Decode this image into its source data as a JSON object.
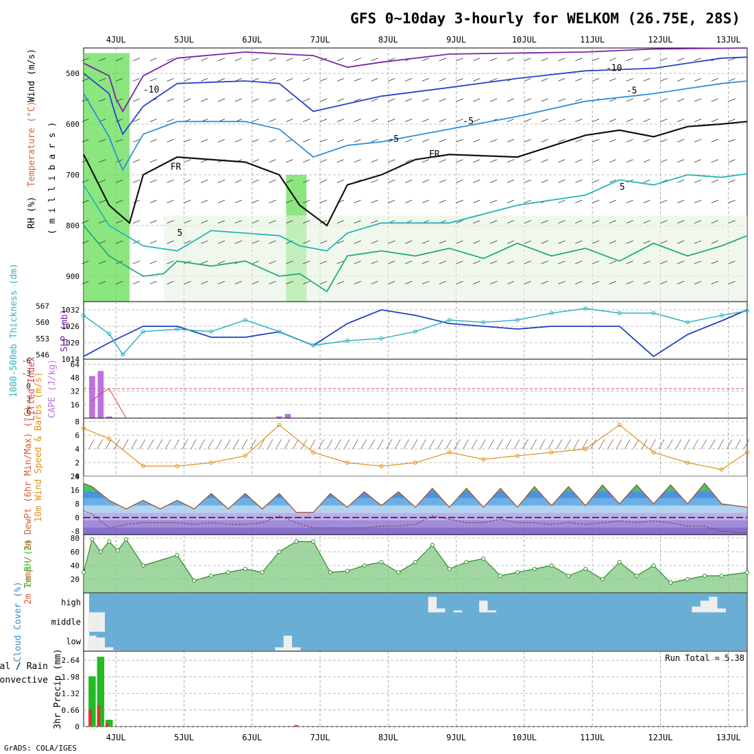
{
  "title": "GFS 0~10day 3-hourly for WELKOM (26.75E, 28S)",
  "footer": "GrADS: COLA/IGES",
  "colors": {
    "rh": "#33cc33",
    "temperature": "#d95f3b",
    "wind": "#000000",
    "slp": "#1f3fbf",
    "thickness": "#2eb3bf",
    "cape": "#c070e0",
    "lifted": "#d94040",
    "wind10": "#e0901a",
    "dewpt": "#808080",
    "cloud_bg": "#6aaed6",
    "rain": "#22bb22",
    "convective": "#dd3333"
  },
  "chart_data": [
    {
      "panel": "upper_air",
      "type": "contour",
      "x_labels": [
        "4JUL",
        "5JUL",
        "6JUL",
        "7JUL",
        "8JUL",
        "9JUL",
        "10JUL",
        "11JUL",
        "12JUL",
        "13JUL"
      ],
      "x_label_offsets": [
        0.1,
        1.1,
        2.1,
        3.1,
        4.1,
        5.1,
        6.1,
        7.1,
        8.1,
        9.1
      ],
      "x_range": [
        -0.375,
        9.375
      ],
      "ylabel_parts": [
        "RH (%)",
        "Temperature (°C)",
        "Wind (m/s)"
      ],
      "ylabel_units": "( m i l l i b a r s )",
      "y_ticks": [
        500,
        600,
        700,
        800,
        900
      ],
      "ylim": [
        450,
        950
      ],
      "contour_labels": [
        "-10",
        "-10",
        "-5",
        "-5",
        "-5",
        "5",
        "5",
        "FR",
        "FR"
      ],
      "isotherms": {
        "neg15": [
          [
            -0.375,
            480
          ],
          [
            0,
            505
          ],
          [
            0.1,
            550
          ],
          [
            0.2,
            575
          ],
          [
            0.5,
            505
          ],
          [
            1,
            470
          ],
          [
            2,
            458
          ],
          [
            3,
            465
          ],
          [
            3.5,
            488
          ],
          [
            4,
            478
          ],
          [
            5,
            462
          ],
          [
            6,
            460
          ],
          [
            7,
            458
          ],
          [
            8,
            452
          ],
          [
            9.375,
            450
          ]
        ],
        "neg10": [
          [
            -0.375,
            500
          ],
          [
            0,
            540
          ],
          [
            0.1,
            585
          ],
          [
            0.2,
            620
          ],
          [
            0.5,
            565
          ],
          [
            1,
            520
          ],
          [
            2,
            515
          ],
          [
            2.5,
            520
          ],
          [
            3,
            575
          ],
          [
            3.5,
            560
          ],
          [
            4,
            545
          ],
          [
            5,
            528
          ],
          [
            6,
            510
          ],
          [
            7,
            495
          ],
          [
            8,
            490
          ],
          [
            9,
            470
          ],
          [
            9.375,
            468
          ]
        ],
        "neg5": [
          [
            -0.375,
            540
          ],
          [
            0,
            625
          ],
          [
            0.1,
            660
          ],
          [
            0.2,
            690
          ],
          [
            0.5,
            620
          ],
          [
            1,
            595
          ],
          [
            2,
            595
          ],
          [
            2.5,
            610
          ],
          [
            3,
            665
          ],
          [
            3.5,
            642
          ],
          [
            4,
            635
          ],
          [
            5,
            610
          ],
          [
            6,
            585
          ],
          [
            7,
            555
          ],
          [
            8,
            540
          ],
          [
            9,
            520
          ],
          [
            9.375,
            515
          ]
        ],
        "zero": [
          [
            -0.375,
            660
          ],
          [
            0,
            760
          ],
          [
            0.3,
            795
          ],
          [
            0.5,
            700
          ],
          [
            1,
            665
          ],
          [
            2,
            675
          ],
          [
            2.5,
            700
          ],
          [
            2.8,
            760
          ],
          [
            3.2,
            800
          ],
          [
            3.5,
            720
          ],
          [
            4,
            700
          ],
          [
            4.5,
            670
          ],
          [
            5,
            660
          ],
          [
            6,
            665
          ],
          [
            7,
            622
          ],
          [
            7.5,
            612
          ],
          [
            8,
            625
          ],
          [
            8.5,
            605
          ],
          [
            9,
            600
          ],
          [
            9.375,
            595
          ]
        ],
        "pos5": [
          [
            -0.375,
            720
          ],
          [
            0,
            800
          ],
          [
            0.5,
            840
          ],
          [
            1,
            850
          ],
          [
            1.5,
            810
          ],
          [
            2,
            815
          ],
          [
            2.5,
            820
          ],
          [
            2.8,
            840
          ],
          [
            3.2,
            850
          ],
          [
            3.5,
            815
          ],
          [
            4,
            795
          ],
          [
            5,
            795
          ],
          [
            6,
            760
          ],
          [
            7,
            740
          ],
          [
            7.5,
            710
          ],
          [
            8,
            720
          ],
          [
            8.5,
            700
          ],
          [
            9,
            705
          ],
          [
            9.375,
            698
          ]
        ],
        "pos10": [
          [
            -0.375,
            800
          ],
          [
            0,
            860
          ],
          [
            0.5,
            900
          ],
          [
            0.8,
            895
          ],
          [
            1,
            870
          ],
          [
            1.5,
            880
          ],
          [
            2,
            870
          ],
          [
            2.5,
            900
          ],
          [
            2.8,
            895
          ],
          [
            3.2,
            930
          ],
          [
            3.5,
            860
          ],
          [
            4,
            850
          ],
          [
            4.5,
            860
          ],
          [
            5,
            845
          ],
          [
            5.5,
            865
          ],
          [
            6,
            835
          ],
          [
            6.5,
            860
          ],
          [
            7,
            845
          ],
          [
            7.5,
            870
          ],
          [
            8,
            835
          ],
          [
            8.5,
            860
          ],
          [
            9,
            840
          ],
          [
            9.375,
            820
          ]
        ]
      },
      "rh_moist_days": [
        [
          -0.375,
          0.3,
          460,
          950
        ],
        [
          2.6,
          2.9,
          700,
          950
        ]
      ]
    },
    {
      "panel": "slp_thickness",
      "type": "line",
      "title": "SLP / 1000-500mb Thickness",
      "ylabel_left": "1000-500mb Thickness (dm)",
      "ylabel_right": "SLP (mb)",
      "thickness_ticks": [
        546,
        553,
        560,
        567
      ],
      "slp_ticks": [
        1014,
        1020,
        1026,
        1032
      ],
      "slp_ylim": [
        1014,
        1035
      ],
      "thick_ylim": [
        544,
        569
      ],
      "series": [
        {
          "name": "SLP (mb)",
          "x": [
            -0.375,
            0,
            0.5,
            1,
            1.5,
            2,
            2.5,
            3,
            3.5,
            4,
            4.5,
            5,
            5.5,
            6,
            6.5,
            7,
            7.5,
            8,
            8.5,
            9,
            9.375
          ],
          "values": [
            1015,
            1020,
            1026,
            1026,
            1022,
            1022,
            1024,
            1019,
            1027,
            1032,
            1030,
            1027,
            1026,
            1025,
            1026,
            1026,
            1026,
            1015,
            1023,
            1028,
            1032
          ]
        },
        {
          "name": "1000-500mb Thickness (dm)",
          "x": [
            -0.375,
            0,
            0.2,
            0.5,
            1,
            1.5,
            2,
            2.5,
            3,
            3.5,
            4,
            4.5,
            5,
            5.5,
            6,
            6.5,
            7,
            7.5,
            8,
            8.5,
            9,
            9.375
          ],
          "values": [
            563,
            555,
            546,
            556,
            557,
            556,
            561,
            556,
            550,
            552,
            553,
            556,
            561,
            560,
            561,
            564,
            566,
            564,
            564,
            560,
            563,
            565
          ]
        }
      ]
    },
    {
      "panel": "cape_lifted",
      "type": "bar",
      "ylabel_left": "Lifted Index",
      "ylabel_right": "CAPE (J/kg)",
      "li_ticks": [
        "-6",
        "-3",
        "0",
        "3",
        "6"
      ],
      "cape_ticks": [
        16,
        32,
        48,
        64
      ],
      "cape_ylim": [
        0,
        70
      ],
      "cape_x": [
        -0.25,
        -0.125,
        0,
        2.5,
        2.625
      ],
      "cape_values": [
        50,
        56,
        2,
        2,
        5
      ],
      "lifted_x": [
        -0.25,
        -0.125,
        0,
        0.125,
        0.25
      ],
      "lifted_values": [
        2.5,
        1,
        0,
        3,
        6
      ]
    },
    {
      "panel": "wind10",
      "type": "line",
      "ylabel": "10m Wind Speed & Barbs (m/s)",
      "y_ticks": [
        0,
        2,
        4,
        6,
        8
      ],
      "ylim": [
        0,
        8.5
      ],
      "x": [
        -0.375,
        0,
        0.5,
        1,
        1.5,
        2,
        2.5,
        3,
        3.5,
        4,
        4.5,
        5,
        5.5,
        6,
        6.5,
        7,
        7.5,
        8,
        8.5,
        9,
        9.375
      ],
      "values": [
        7,
        5.5,
        1.5,
        1.5,
        2,
        3,
        7.5,
        3.5,
        2,
        1.5,
        2,
        3.5,
        2.5,
        3,
        3.5,
        4,
        7.5,
        3.5,
        2,
        1,
        3.5
      ]
    },
    {
      "panel": "temp2m",
      "type": "area",
      "ylabel": "2m Temp / 2m DewPt (6hr Min/Max) (°C)",
      "y_ticks": [
        -8,
        0,
        8,
        16,
        24
      ],
      "ylim": [
        -10,
        24
      ],
      "x": [
        -0.375,
        -0.25,
        0,
        0.25,
        0.5,
        0.75,
        1,
        1.25,
        1.5,
        1.75,
        2,
        2.25,
        2.5,
        2.75,
        3,
        3.25,
        3.5,
        3.75,
        4,
        4.25,
        4.5,
        4.75,
        5,
        5.25,
        5.5,
        5.75,
        6,
        6.25,
        6.5,
        6.75,
        7,
        7.25,
        7.5,
        7.75,
        8,
        8.25,
        8.5,
        8.75,
        9,
        9.375
      ],
      "temp": [
        20,
        18,
        10,
        5,
        10,
        5,
        10,
        5,
        14,
        5,
        14,
        5,
        14,
        3,
        3,
        14,
        6,
        15,
        7,
        15,
        6,
        17,
        6,
        17,
        6,
        17,
        6,
        18,
        7,
        18,
        7,
        19,
        8,
        19,
        8,
        19,
        8,
        20,
        8,
        6
      ],
      "dewpt": [
        4,
        2,
        -6,
        -4,
        -3,
        -3,
        -3,
        -4,
        -3,
        -4,
        -4,
        -3,
        1,
        -3,
        -6,
        -6,
        -6,
        -6,
        -5,
        -5,
        -4,
        1,
        -1,
        -3,
        -3,
        -1,
        -3,
        -3,
        -4,
        -3,
        -4,
        -3,
        -2,
        -3,
        -2,
        -3,
        -5,
        -5,
        -8,
        -9
      ]
    },
    {
      "panel": "rh2m",
      "type": "area",
      "ylabel": "2m RH (%)",
      "y_ticks": [
        20,
        40,
        60,
        80
      ],
      "ylim": [
        0,
        85
      ],
      "x": [
        -0.375,
        -0.25,
        -0.125,
        0,
        0.125,
        0.25,
        0.5,
        1,
        1.25,
        1.5,
        1.75,
        2,
        2.25,
        2.5,
        2.75,
        3,
        3.25,
        3.5,
        3.75,
        4,
        4.25,
        4.5,
        4.75,
        5,
        5.25,
        5.5,
        5.75,
        6,
        6.25,
        6.5,
        6.75,
        7,
        7.25,
        7.5,
        7.75,
        8,
        8.25,
        8.5,
        8.75,
        9,
        9.375
      ],
      "values": [
        30,
        78,
        60,
        75,
        62,
        78,
        40,
        55,
        18,
        25,
        30,
        35,
        30,
        60,
        75,
        75,
        30,
        32,
        40,
        45,
        30,
        45,
        70,
        35,
        45,
        50,
        25,
        30,
        35,
        40,
        25,
        35,
        20,
        45,
        25,
        40,
        15,
        20,
        25,
        25,
        30
      ]
    },
    {
      "panel": "cloud_cover",
      "type": "bar",
      "ylabel": "Cloud Cover (%)",
      "levels": [
        "high",
        "middle",
        "low"
      ],
      "high": [
        {
          "x": 4.75,
          "v": 80
        },
        {
          "x": 4.875,
          "v": 20
        },
        {
          "x": 5.125,
          "v": 10
        },
        {
          "x": 5.5,
          "v": 60
        },
        {
          "x": 5.625,
          "v": 10
        },
        {
          "x": 8.625,
          "v": 30
        },
        {
          "x": 8.75,
          "v": 60
        },
        {
          "x": 8.875,
          "v": 80
        },
        {
          "x": 9,
          "v": 20
        }
      ],
      "middle": [
        {
          "x": -0.25,
          "v": 100
        },
        {
          "x": -0.125,
          "v": 100
        }
      ],
      "low": [
        {
          "x": -0.25,
          "v": 80
        },
        {
          "x": -0.125,
          "v": 70
        },
        {
          "x": 0,
          "v": 20
        },
        {
          "x": 0.125,
          "v": 5
        },
        {
          "x": 2.5,
          "v": 20
        },
        {
          "x": 2.625,
          "v": 80
        },
        {
          "x": 2.75,
          "v": 20
        }
      ]
    },
    {
      "panel": "precip",
      "type": "bar",
      "ylabel": "3hr Precip (mm)",
      "legend_total": "Total / Rain",
      "legend_conv": "Convective",
      "run_total_label": "Run Total = 5.38",
      "y_ticks": [
        "0",
        "0.66",
        "1.32",
        "1.98",
        "2.64"
      ],
      "ylim": [
        0,
        3.0
      ],
      "x": [
        -0.25,
        -0.125,
        0
      ],
      "total": [
        2.0,
        2.78,
        0.27
      ],
      "convective": [
        0.68,
        0.84,
        0.12
      ],
      "conv_extra": [
        {
          "x": 2.75,
          "v": 0.06
        }
      ]
    }
  ]
}
